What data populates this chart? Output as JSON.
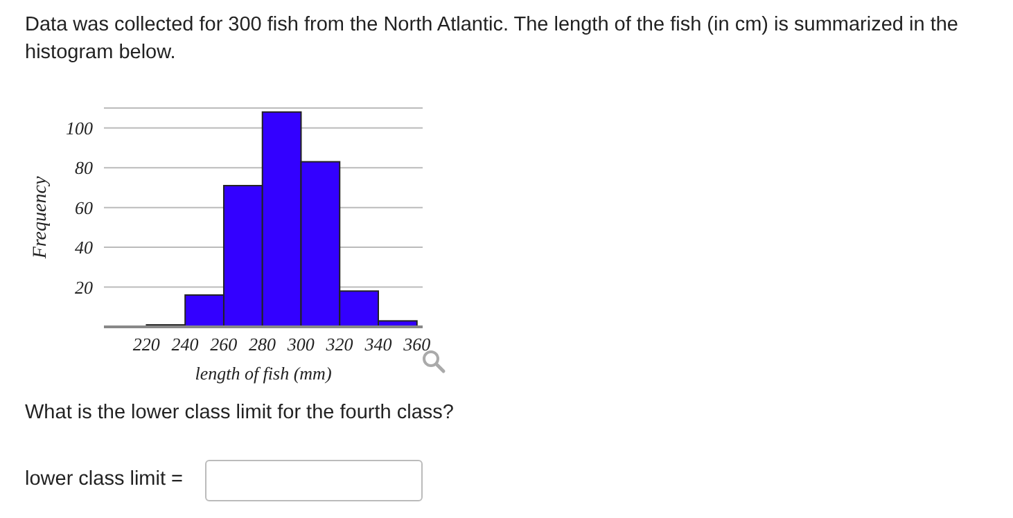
{
  "chart_data": {
    "type": "histogram",
    "title": "Data was collected for 300 fish from the North Atlantic. The length of the fish (in cm) is summarized in the histogram below.",
    "xlabel": "length of fish (mm)",
    "ylabel": "Frequency",
    "bins": [
      220,
      240,
      260,
      280,
      300,
      320,
      340,
      360
    ],
    "values": [
      1,
      16,
      71,
      108,
      83,
      18,
      3
    ],
    "color": "#3300ff",
    "xlim": [
      198,
      363
    ],
    "xticks": [
      220,
      240,
      260,
      280,
      300,
      320,
      340,
      360
    ],
    "ylim": [
      0,
      110
    ],
    "yticks": [
      20,
      40,
      60,
      80,
      100
    ],
    "grid": "y",
    "annotations": [
      "What is the lower class limit for the fourth class?",
      "lower class limit ="
    ]
  }
}
